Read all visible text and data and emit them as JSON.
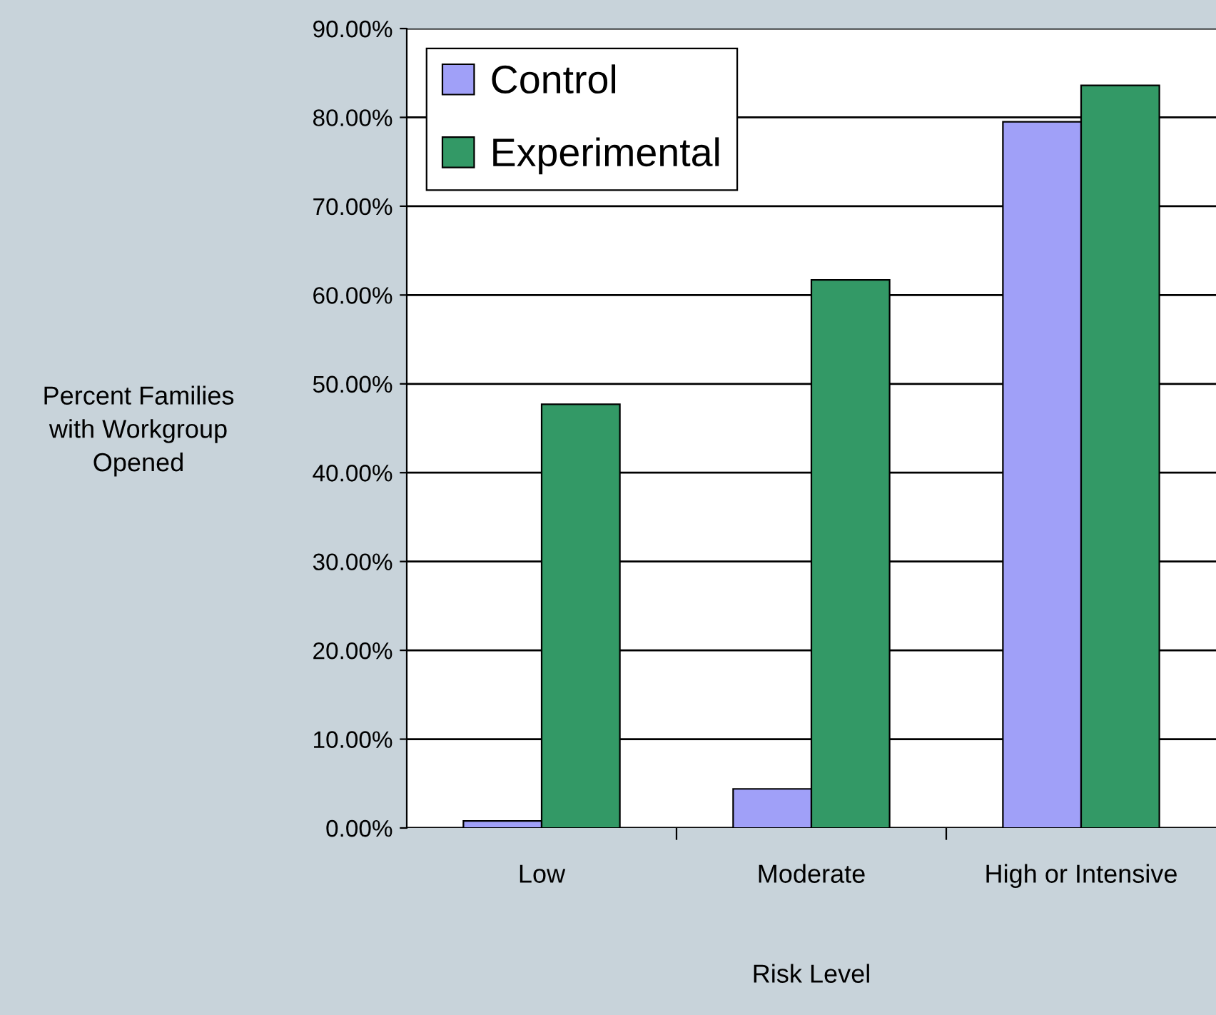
{
  "chart_data": {
    "type": "bar",
    "xlabel": "Risk Level",
    "ylabel": "Percent Families\nwith Workgroup\nOpened",
    "categories": [
      "Low",
      "Moderate",
      "High or Intensive"
    ],
    "series": [
      {
        "name": "Control",
        "color": "#a0a0f8",
        "values": [
          0.8,
          4.4,
          79.5
        ]
      },
      {
        "name": "Experimental",
        "color": "#339966",
        "values": [
          47.7,
          61.7,
          83.6
        ]
      }
    ],
    "ylim": [
      0,
      90
    ],
    "yticks": [
      {
        "value": 0,
        "label": "0.00%"
      },
      {
        "value": 10,
        "label": "10.00%"
      },
      {
        "value": 20,
        "label": "20.00%"
      },
      {
        "value": 30,
        "label": "30.00%"
      },
      {
        "value": 40,
        "label": "40.00%"
      },
      {
        "value": 50,
        "label": "50.00%"
      },
      {
        "value": 60,
        "label": "60.00%"
      },
      {
        "value": 70,
        "label": "70.00%"
      },
      {
        "value": 80,
        "label": "80.00%"
      },
      {
        "value": 90,
        "label": "90.00%"
      }
    ],
    "grid": "y",
    "legend": "top left"
  }
}
